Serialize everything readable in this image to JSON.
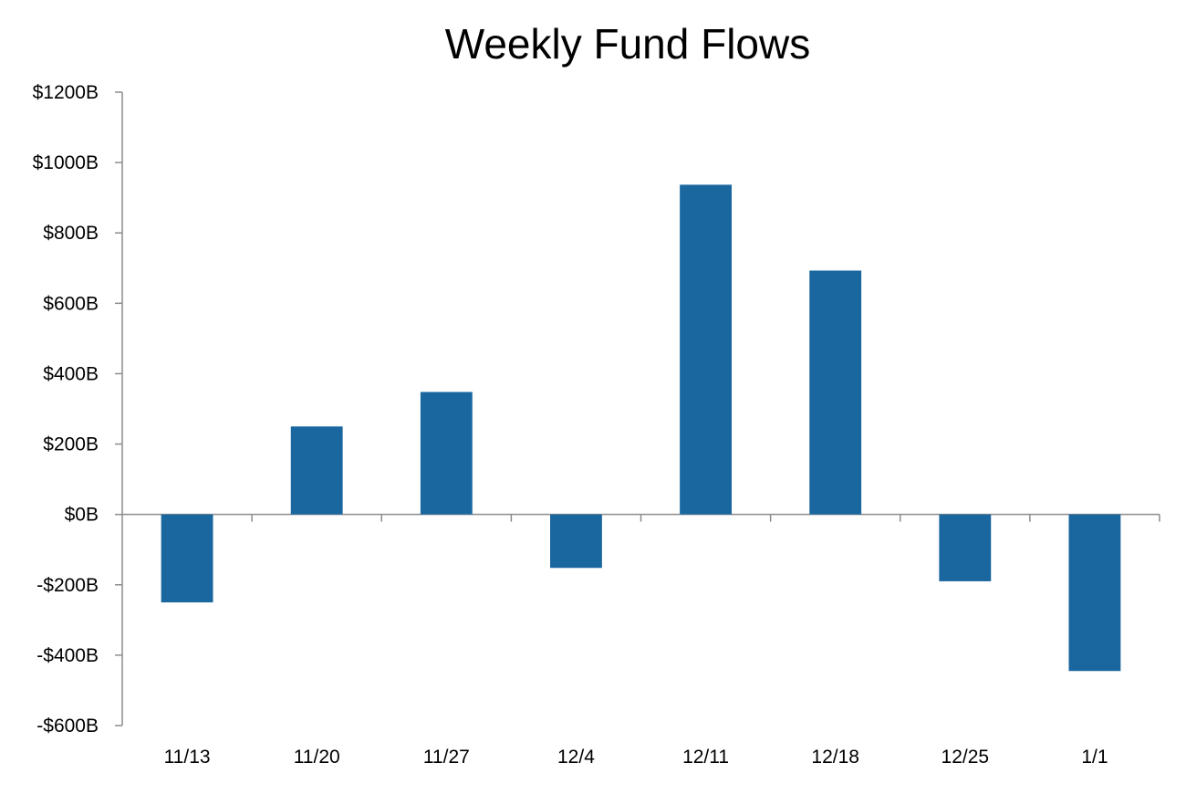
{
  "chart_data": {
    "type": "bar",
    "title": "Weekly Fund Flows",
    "xlabel": "",
    "ylabel": "",
    "categories": [
      "11/13",
      "11/20",
      "11/27",
      "12/4",
      "12/11",
      "12/18",
      "12/25",
      "1/1"
    ],
    "series": [
      {
        "values": [
          -250,
          250,
          348,
          -152,
          937,
          693,
          -190,
          -445
        ]
      }
    ],
    "ylim": [
      -600,
      1200
    ],
    "yticks": [
      -600,
      -400,
      -200,
      0,
      200,
      400,
      600,
      800,
      1000,
      1200
    ],
    "ytick_labels": [
      "-$600B",
      "-$400B",
      "-$200B",
      "$0B",
      "$200B",
      "$400B",
      "$600B",
      "$800B",
      "$1000B",
      "$1200B"
    ],
    "grid": false,
    "legend": "none",
    "bar_color": "#1a67a0"
  }
}
